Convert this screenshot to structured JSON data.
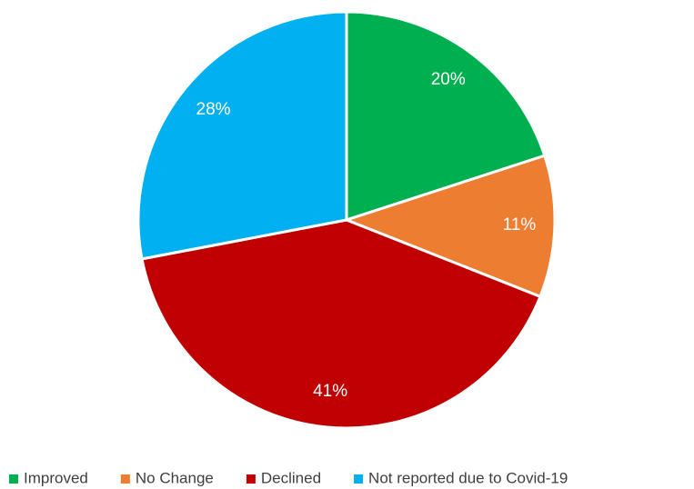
{
  "chart_data": {
    "type": "pie",
    "categories": [
      "Improved",
      "No Change",
      "Declined",
      "Not reported due to Covid-19"
    ],
    "values": [
      20,
      11,
      41,
      28
    ],
    "value_labels": [
      "20%",
      "11%",
      "41%",
      "28%"
    ],
    "colors": [
      "#00b050",
      "#ed7d31",
      "#c00000",
      "#00b0f0"
    ],
    "legend": "bottom"
  }
}
